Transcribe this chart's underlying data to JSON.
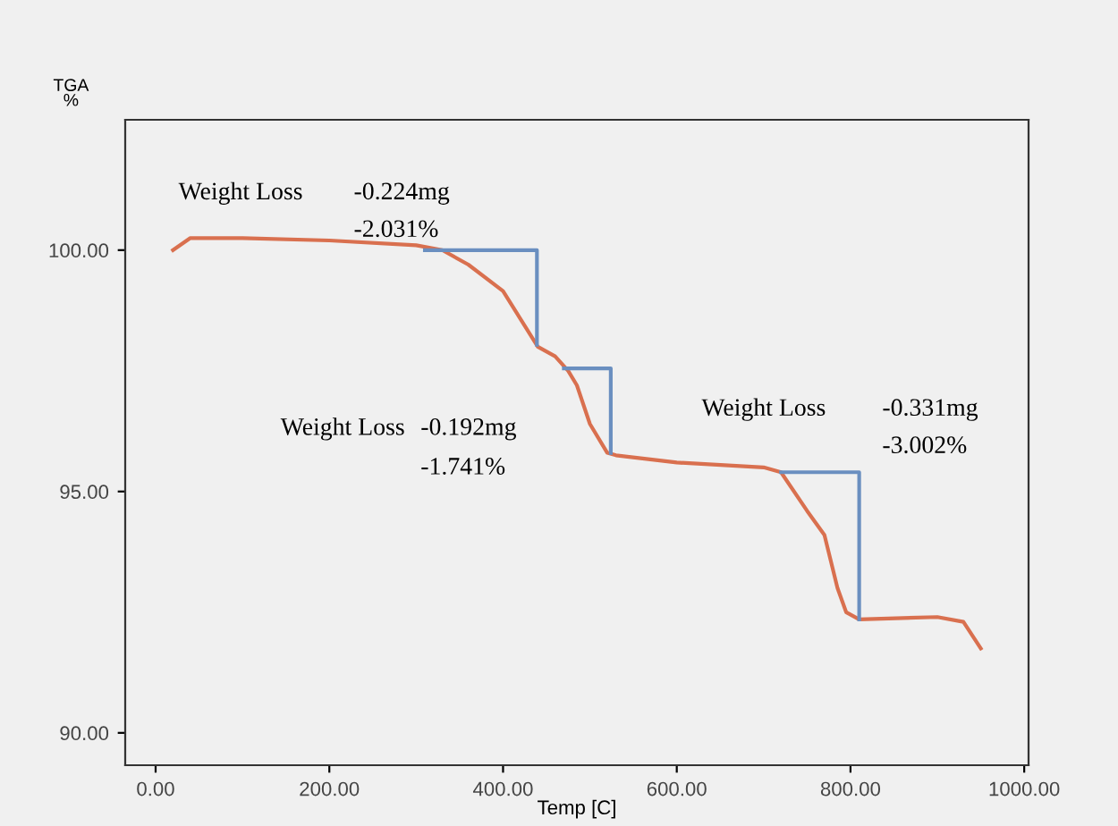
{
  "chart_data": {
    "type": "line",
    "ylabel": "TGA\n%",
    "xlabel": "Temp [C]",
    "xlim": [
      -35,
      1005
    ],
    "ylim": [
      89.33,
      102.7
    ],
    "xticks": [
      {
        "value": 0,
        "label": "0.00"
      },
      {
        "value": 200,
        "label": "200.00"
      },
      {
        "value": 400,
        "label": "400.00"
      },
      {
        "value": 600,
        "label": "600.00"
      },
      {
        "value": 800,
        "label": "800.00"
      },
      {
        "value": 1000,
        "label": "1000.00"
      }
    ],
    "yticks": [
      {
        "value": 90,
        "label": "90.00"
      },
      {
        "value": 95,
        "label": "95.00"
      },
      {
        "value": 100,
        "label": "100.00"
      }
    ],
    "grid": false,
    "legend": false,
    "marker": "none",
    "line_style": "solid",
    "series": [
      {
        "color": "#d9704f",
        "x": [
          20,
          40,
          100,
          200,
          300,
          330,
          360,
          400,
          440,
          460,
          475,
          485,
          500,
          520,
          530,
          600,
          700,
          720,
          750,
          770,
          785,
          795,
          810,
          900,
          930,
          950
        ],
        "values": [
          100.0,
          100.25,
          100.25,
          100.2,
          100.1,
          100.0,
          99.7,
          99.15,
          98.0,
          97.8,
          97.5,
          97.2,
          96.4,
          95.8,
          95.75,
          95.6,
          95.5,
          95.4,
          94.6,
          94.1,
          93.0,
          92.5,
          92.35,
          92.4,
          92.3,
          91.75
        ]
      },
      {
        "color": "#6a8fc0",
        "x": [
          310,
          439,
          439,
          null,
          470,
          524,
          524,
          null,
          720,
          810,
          810
        ],
        "values": [
          100.0,
          100.0,
          98.04,
          null,
          97.55,
          97.55,
          95.8,
          null,
          95.4,
          95.4,
          92.35
        ]
      }
    ],
    "annotations": [
      "Weight Loss",
      "-0.224mg",
      "-2.031%",
      "Weight Loss",
      "-0.192mg",
      "-1.741%",
      "Weight Loss",
      "-0.331mg",
      "-3.002%"
    ]
  }
}
